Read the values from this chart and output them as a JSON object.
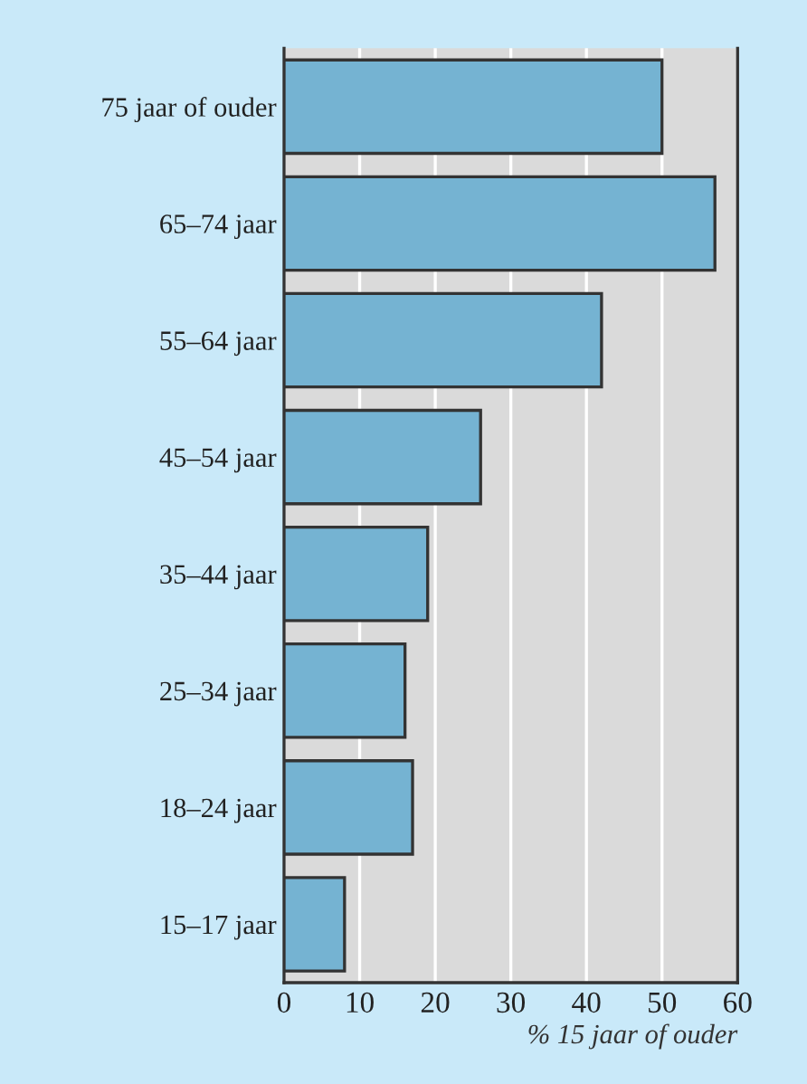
{
  "chart_data": {
    "type": "bar",
    "orientation": "horizontal",
    "xlabel": "% 15 jaar of ouder",
    "categories": [
      "75 jaar of ouder",
      "65–74 jaar",
      "55–64 jaar",
      "45–54 jaar",
      "35–44 jaar",
      "25–34 jaar",
      "18–24 jaar",
      "15–17 jaar"
    ],
    "values": [
      50,
      57,
      42,
      26,
      19,
      16,
      17,
      8
    ],
    "color": "#75b3d2",
    "xlim": [
      0,
      60
    ],
    "xticks": [
      0,
      10,
      20,
      30,
      40,
      50,
      60
    ],
    "grid": "x"
  }
}
